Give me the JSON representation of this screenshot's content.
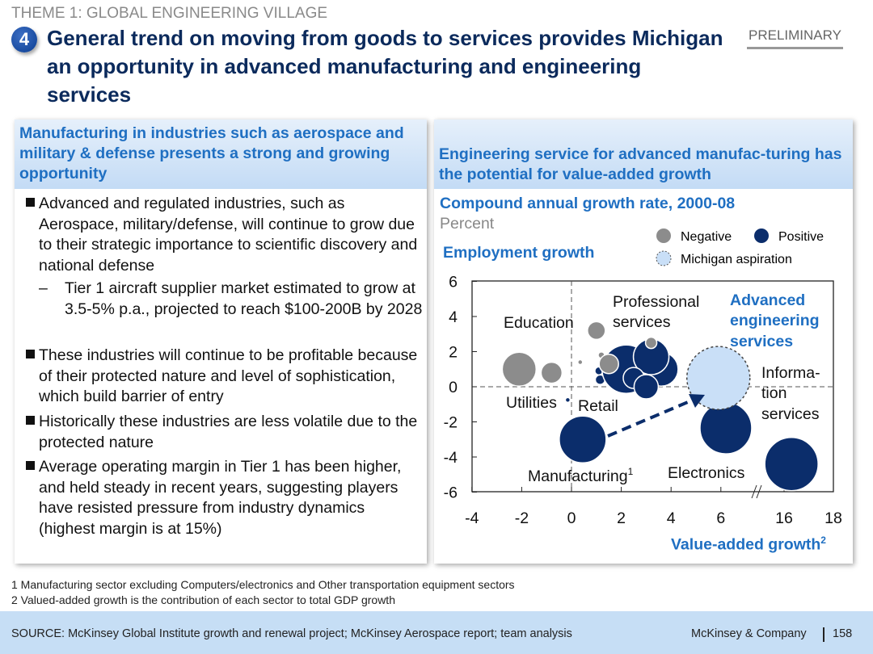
{
  "header": {
    "theme": "THEME 1: GLOBAL ENGINEERING VILLAGE",
    "number": "4",
    "title": "General trend on moving from goods to services provides Michigan an opportunity in advanced manufacturing and engineering services",
    "badge": "PRELIMINARY"
  },
  "left": {
    "heading": "Manufacturing in industries such as aerospace and military & defense presents a strong and growing opportunity",
    "bullets": [
      "Advanced and regulated industries, such as Aerospace, military/defense, will continue to grow due to their strategic importance to scientific discovery and national defense",
      "Tier 1 aircraft supplier market estimated to grow at 3.5-5% p.a., projected to reach $100-200B by 2028",
      "These industries will continue to be profitable because of their protected nature and level of sophistication, which build barrier of entry",
      "Historically these industries are less volatile due to the protected nature",
      "Average operating margin in Tier 1 has been higher, and held steady in recent years, suggesting players have resisted pressure from industry dynamics (highest margin is at 15%)"
    ],
    "sub_dash": "–"
  },
  "right": {
    "heading": "Engineering service for advanced manufac-turing has the potential for value-added growth"
  },
  "chart_data": {
    "type": "scatter",
    "title": "Compound annual growth rate, 2000-08",
    "subtitle": "Percent",
    "ylabel": "Employment growth",
    "xlabel": "Value-added growth",
    "xlabel_sup": "2",
    "xticks": [
      "-4",
      "-2",
      "0",
      "2",
      "4",
      "6",
      "16",
      "18"
    ],
    "xtick_values": [
      -4,
      -2,
      0,
      2,
      4,
      6,
      16,
      18
    ],
    "x_break": "between 6 and 16",
    "yticks": [
      "6",
      "4",
      "2",
      "0",
      "-2",
      "-4",
      "-6"
    ],
    "ytick_values": [
      6,
      4,
      2,
      0,
      -2,
      -4,
      -6
    ],
    "ylim": [
      -6,
      6
    ],
    "legend": {
      "negative": "Negative",
      "positive": "Positive",
      "aspiration": "Michigan aspiration"
    },
    "colors": {
      "negative": "#8c8c8c",
      "positive": "#0b2d6b",
      "aspiration": "#c9dff7",
      "accent": "#1f6fc2"
    },
    "points": [
      {
        "name": "Utilities",
        "x": -2.1,
        "y": 1.0,
        "size": 21,
        "kind": "negative"
      },
      {
        "name": "",
        "x": -0.8,
        "y": 0.8,
        "size": 13,
        "kind": "negative"
      },
      {
        "name": "",
        "x": 0.35,
        "y": 1.4,
        "size": 3,
        "kind": "negative"
      },
      {
        "name": "Education",
        "x": 1.0,
        "y": 3.2,
        "size": 11,
        "kind": "negative"
      },
      {
        "name": "",
        "x": -0.15,
        "y": -0.75,
        "size": 3,
        "kind": "positive"
      },
      {
        "name": "Retail",
        "x": 1.15,
        "y": 0.4,
        "size": 6,
        "kind": "positive"
      },
      {
        "name": "",
        "x": 1.1,
        "y": 0.9,
        "size": 5,
        "kind": "positive"
      },
      {
        "name": "",
        "x": 2.2,
        "y": 1.0,
        "size": 30,
        "kind": "positive"
      },
      {
        "name": "",
        "x": 3.6,
        "y": 1.0,
        "size": 21,
        "kind": "positive"
      },
      {
        "name": "",
        "x": 3.2,
        "y": 1.7,
        "size": 22,
        "kind": "positive"
      },
      {
        "name": "",
        "x": 2.5,
        "y": 0.5,
        "size": 13,
        "kind": "positive"
      },
      {
        "name": "",
        "x": 3.0,
        "y": 0.0,
        "size": 15,
        "kind": "positive"
      },
      {
        "name": "",
        "x": 1.2,
        "y": 1.8,
        "size": 4,
        "kind": "negative"
      },
      {
        "name": "",
        "x": 1.5,
        "y": 1.3,
        "size": 12,
        "kind": "negative"
      },
      {
        "name": "Professional services",
        "x": 3.2,
        "y": 2.5,
        "size": 7,
        "kind": "negative"
      },
      {
        "name": "Manufacturing",
        "x": 0.45,
        "y": -3.0,
        "size": 29,
        "kind": "positive"
      },
      {
        "name": "Information services",
        "x": 6.2,
        "y": -2.35,
        "size": 32,
        "kind": "positive"
      },
      {
        "name": "Electronics",
        "x": 16.3,
        "y": -4.4,
        "size": 33,
        "kind": "positive"
      },
      {
        "name": "Advanced engineering services",
        "x": 5.9,
        "y": 0.5,
        "size": 39,
        "kind": "aspiration"
      }
    ],
    "labels": {
      "education": "Education",
      "professional1": "Professional",
      "professional2": "services",
      "utilities": "Utilities",
      "retail": "Retail",
      "manufacturing": "Manufacturing",
      "manufacturing_sup": "1",
      "electronics": "Electronics",
      "info1": "Informa-",
      "info2": "tion",
      "info3": "services",
      "adv1": "Advanced",
      "adv2": "engineering",
      "adv3": "services"
    }
  },
  "footnotes": [
    "1 Manufacturing sector excluding Computers/electronics and Other transportation equipment sectors",
    "2 Valued-added growth is the contribution of each sector to total GDP growth"
  ],
  "footer": {
    "source": "SOURCE: McKinsey Global Institute growth and renewal project; McKinsey Aerospace report; team analysis",
    "company": "McKinsey & Company",
    "page": "158"
  }
}
